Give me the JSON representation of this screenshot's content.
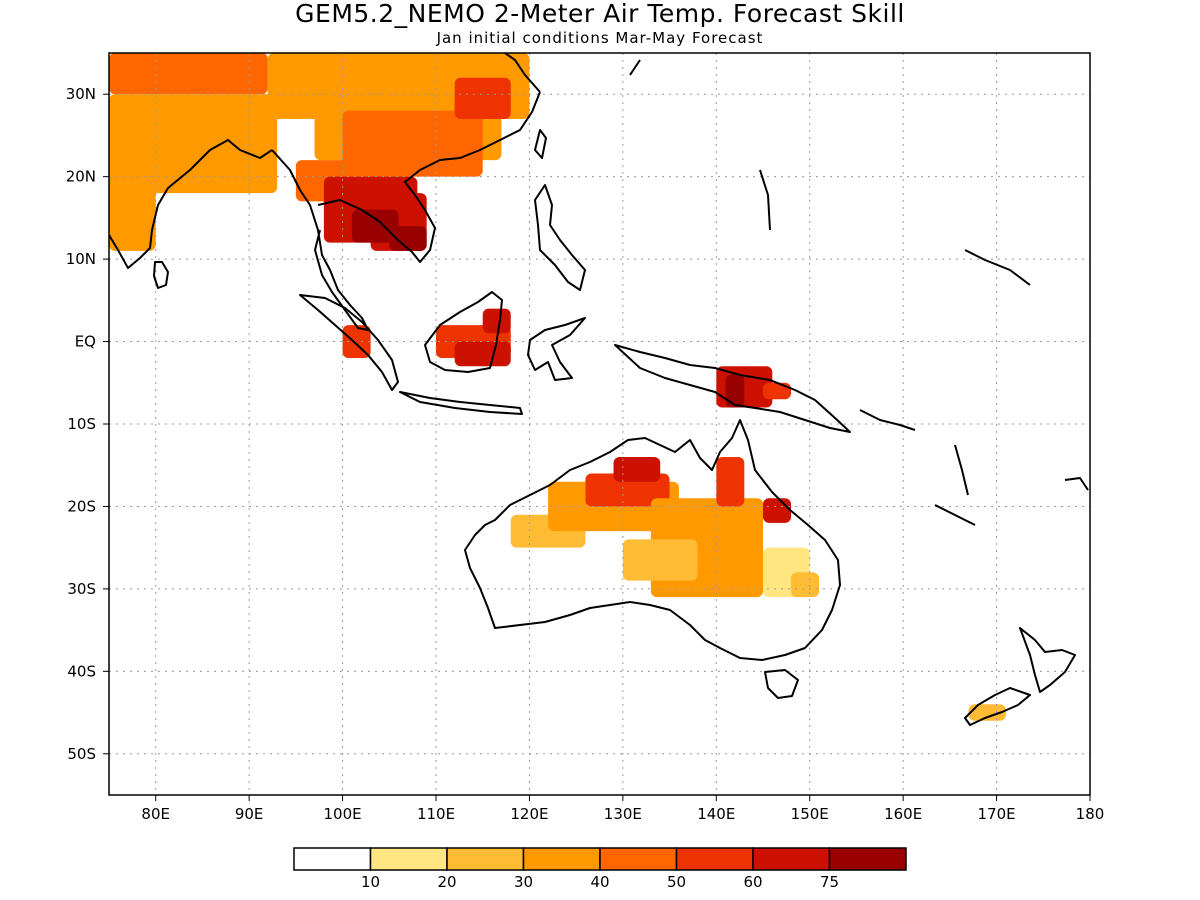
{
  "title": "GEM5.2_NEMO 2-Meter Air Temp. Forecast Skill",
  "subtitle": "Jan initial conditions  Mar-May Forecast",
  "axes": {
    "lon_range": [
      75,
      180
    ],
    "lat_range": [
      -55,
      35
    ],
    "lon_ticks": [
      {
        "value": 80,
        "label": "80E"
      },
      {
        "value": 90,
        "label": "90E"
      },
      {
        "value": 100,
        "label": "100E"
      },
      {
        "value": 110,
        "label": "110E"
      },
      {
        "value": 120,
        "label": "120E"
      },
      {
        "value": 130,
        "label": "130E"
      },
      {
        "value": 140,
        "label": "140E"
      },
      {
        "value": 150,
        "label": "150E"
      },
      {
        "value": 160,
        "label": "160E"
      },
      {
        "value": 170,
        "label": "170E"
      },
      {
        "value": 180,
        "label": "180"
      }
    ],
    "lat_ticks": [
      {
        "value": 30,
        "label": "30N"
      },
      {
        "value": 20,
        "label": "20N"
      },
      {
        "value": 10,
        "label": "10N"
      },
      {
        "value": 0,
        "label": "EQ"
      },
      {
        "value": -10,
        "label": "10S"
      },
      {
        "value": -20,
        "label": "20S"
      },
      {
        "value": -30,
        "label": "30S"
      },
      {
        "value": -40,
        "label": "40S"
      },
      {
        "value": -50,
        "label": "50S"
      }
    ],
    "grid": true
  },
  "colorbar": {
    "colors": [
      "#ffffff",
      "#ffe680",
      "#ffbb33",
      "#ff9900",
      "#ff6600",
      "#ee3300",
      "#cc1100",
      "#990000"
    ],
    "labels": [
      "10",
      "20",
      "30",
      "40",
      "50",
      "60",
      "75"
    ]
  },
  "skill_regions": [
    {
      "lon": 75,
      "lat": 35,
      "w": 17,
      "h": 5,
      "level": 4
    },
    {
      "lon": 75,
      "lat": 30,
      "w": 18,
      "h": 12,
      "level": 3
    },
    {
      "lon": 75,
      "lat": 21,
      "w": 5,
      "h": 10,
      "level": 3
    },
    {
      "lon": 92,
      "lat": 35,
      "w": 28,
      "h": 8,
      "level": 3
    },
    {
      "lon": 97,
      "lat": 30,
      "w": 20,
      "h": 8,
      "level": 3
    },
    {
      "lon": 100,
      "lat": 28,
      "w": 15,
      "h": 8,
      "level": 4
    },
    {
      "lon": 112,
      "lat": 32,
      "w": 6,
      "h": 5,
      "level": 5
    },
    {
      "lon": 95,
      "lat": 22,
      "w": 12,
      "h": 5,
      "level": 4
    },
    {
      "lon": 98,
      "lat": 20,
      "w": 10,
      "h": 8,
      "level": 6
    },
    {
      "lon": 103,
      "lat": 18,
      "w": 6,
      "h": 7,
      "level": 6
    },
    {
      "lon": 101,
      "lat": 16,
      "w": 5,
      "h": 4,
      "level": 7
    },
    {
      "lon": 105,
      "lat": 14,
      "w": 4,
      "h": 3,
      "level": 7
    },
    {
      "lon": 100,
      "lat": 2,
      "w": 3,
      "h": 4,
      "level": 5
    },
    {
      "lon": 110,
      "lat": 2,
      "w": 8,
      "h": 4,
      "level": 5
    },
    {
      "lon": 112,
      "lat": 0,
      "w": 6,
      "h": 3,
      "level": 6
    },
    {
      "lon": 115,
      "lat": 4,
      "w": 3,
      "h": 3,
      "level": 6
    },
    {
      "lon": 140,
      "lat": -3,
      "w": 6,
      "h": 5,
      "level": 6
    },
    {
      "lon": 141,
      "lat": -4,
      "w": 2,
      "h": 4,
      "level": 7
    },
    {
      "lon": 145,
      "lat": -5,
      "w": 3,
      "h": 2,
      "level": 5
    },
    {
      "lon": 118,
      "lat": -21,
      "w": 8,
      "h": 4,
      "level": 2
    },
    {
      "lon": 122,
      "lat": -17,
      "w": 14,
      "h": 6,
      "level": 3
    },
    {
      "lon": 126,
      "lat": -16,
      "w": 9,
      "h": 4,
      "level": 5
    },
    {
      "lon": 129,
      "lat": -14,
      "w": 5,
      "h": 3,
      "level": 6
    },
    {
      "lon": 133,
      "lat": -19,
      "w": 12,
      "h": 12,
      "level": 3
    },
    {
      "lon": 140,
      "lat": -14,
      "w": 3,
      "h": 6,
      "level": 5
    },
    {
      "lon": 145,
      "lat": -19,
      "w": 3,
      "h": 3,
      "level": 6
    },
    {
      "lon": 130,
      "lat": -24,
      "w": 8,
      "h": 5,
      "level": 2
    },
    {
      "lon": 145,
      "lat": -25,
      "w": 5,
      "h": 6,
      "level": 1
    },
    {
      "lon": 148,
      "lat": -28,
      "w": 3,
      "h": 3,
      "level": 2
    },
    {
      "lon": 167,
      "lat": -44,
      "w": 4,
      "h": 2,
      "level": 2
    }
  ]
}
